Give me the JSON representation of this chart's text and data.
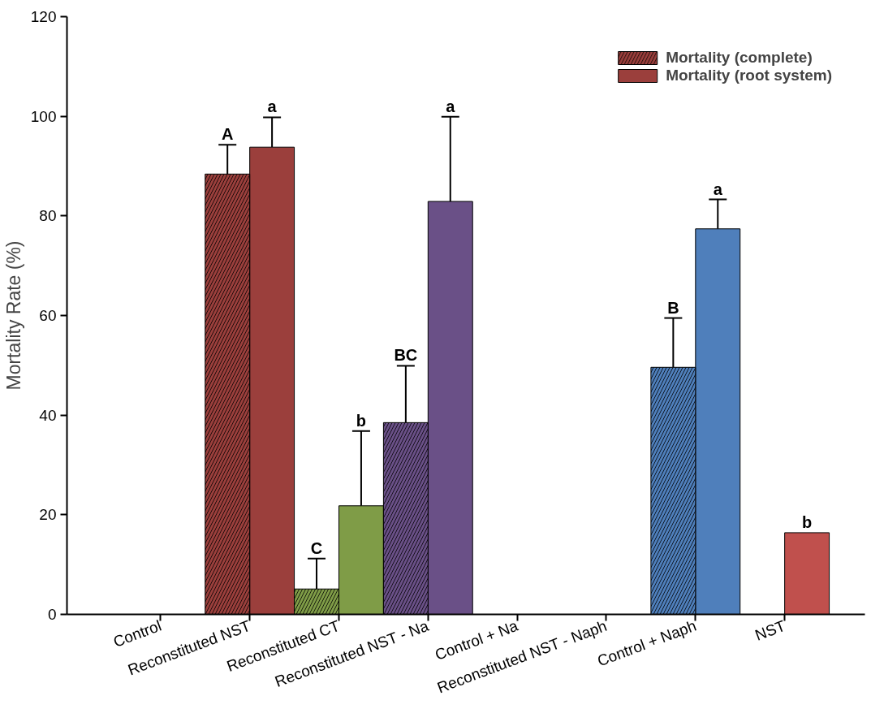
{
  "chart_data": {
    "type": "bar",
    "ylabel": "Mortality Rate (%)",
    "categories": [
      "Control",
      "Reconstituted NST",
      "Reconstituted CT",
      "Reconstituted NST - Na",
      "Control + Na",
      "Reconstituted NST - Naph",
      "Control + Naph",
      "NST"
    ],
    "series": [
      {
        "name": "Mortality (complete)",
        "colors": [
          "#9b3f3c",
          "#9b3f3c",
          "#7f9c47",
          "#6a5087",
          "#6a5087",
          "#4f7fbb",
          "#4f7fbb",
          "#c0504d"
        ],
        "values": [
          null,
          88.4,
          5.1,
          38.5,
          null,
          null,
          49.6,
          null
        ],
        "errors": [
          null,
          5.9,
          6.1,
          11.4,
          null,
          null,
          9.9,
          null
        ]
      },
      {
        "name": "Mortality (root system)",
        "colors": [
          "#9b3f3c",
          "#9b3f3c",
          "#7f9c47",
          "#6a5087",
          "#6a5087",
          "#4f7fbb",
          "#4f7fbb",
          "#c0504d"
        ],
        "values": [
          null,
          93.8,
          21.8,
          82.9,
          null,
          null,
          77.4,
          16.4
        ],
        "errors": [
          null,
          6,
          15,
          17,
          null,
          null,
          5.9,
          null
        ]
      }
    ],
    "annotations": [
      "A",
      "a",
      "C",
      "b",
      "BC",
      "a",
      "B",
      "a",
      "b"
    ],
    "ylim": [
      0,
      120
    ],
    "yticks": [
      0,
      20,
      40,
      60,
      80,
      100,
      120
    ],
    "grid": false,
    "legend": "top right"
  }
}
